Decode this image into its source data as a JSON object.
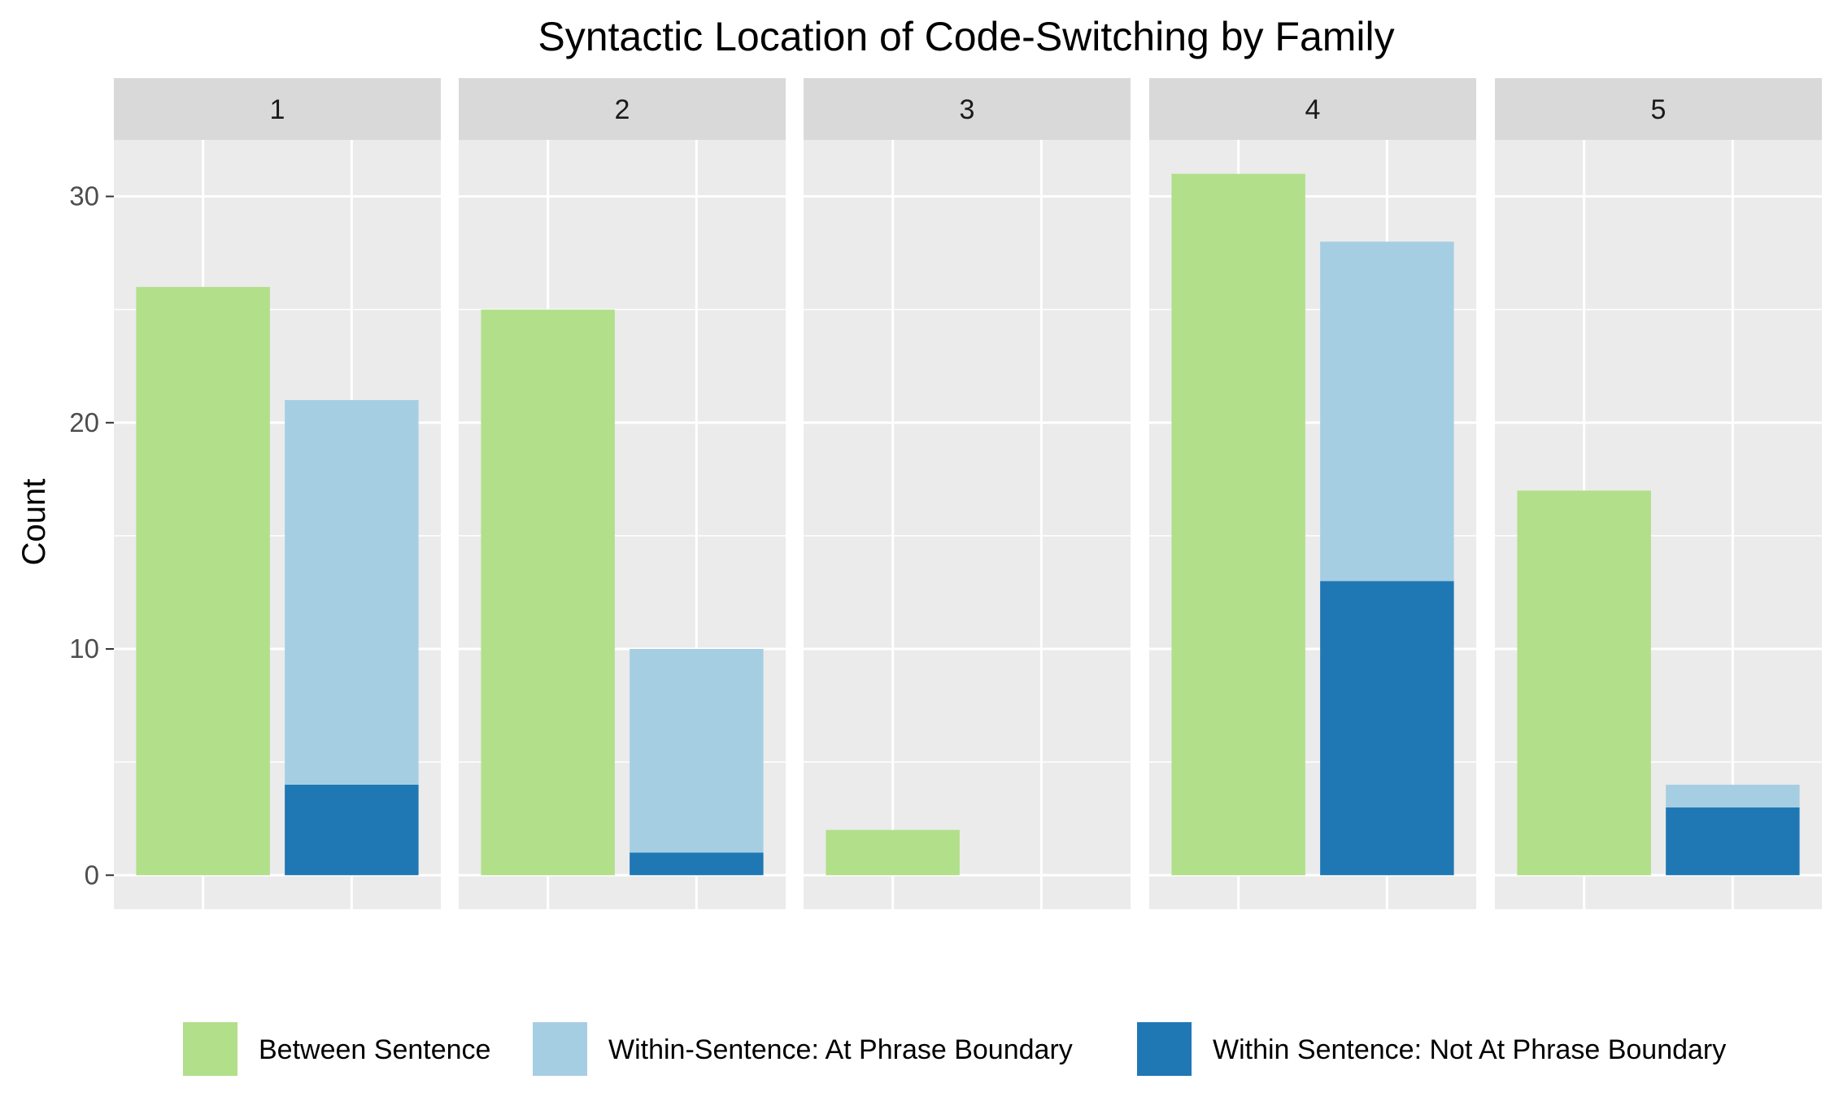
{
  "chart_data": {
    "type": "bar",
    "layout": "faceted-stacked",
    "title": "Syntactic Location of Code-Switching by Family",
    "xlabel": "",
    "ylabel": "Count",
    "ylim": [
      -1.5,
      32.5
    ],
    "yticks": [
      0,
      10,
      20,
      30
    ],
    "grid": true,
    "legend_position": "bottom",
    "facets": [
      "1",
      "2",
      "3",
      "4",
      "5"
    ],
    "series": [
      {
        "name": "Between Sentence",
        "color": "#b2df8a",
        "position": 1,
        "values": [
          26,
          25,
          2,
          31,
          17
        ]
      },
      {
        "name": "Within-Sentence: At Phrase Boundary",
        "color": "#a6cee3",
        "position": 2,
        "values": [
          17,
          9,
          0,
          15,
          1
        ]
      },
      {
        "name": "Within Sentence: Not At Phrase Boundary",
        "color": "#1f78b4",
        "position": 2,
        "values": [
          4,
          1,
          0,
          13,
          3
        ]
      }
    ]
  }
}
